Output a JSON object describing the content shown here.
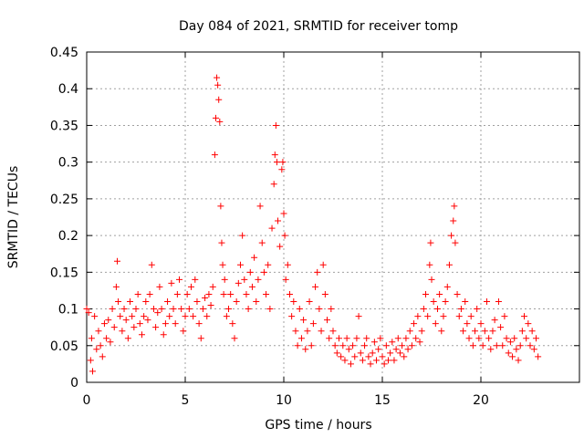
{
  "chart_data": {
    "type": "scatter",
    "title": "Day 084 of 2021, SRMTID for receiver tomp",
    "xlabel": "GPS time / hours",
    "ylabel": "SRMTID / TECUs",
    "xlim": [
      0,
      25
    ],
    "ylim": [
      0,
      0.45
    ],
    "xticks": [
      0,
      5,
      10,
      15,
      20
    ],
    "xtick_labels": [
      "0",
      "5",
      "10",
      "15",
      "20"
    ],
    "yticks": [
      0,
      0.05,
      0.1,
      0.15,
      0.2,
      0.25,
      0.3,
      0.35,
      0.4,
      0.45
    ],
    "ytick_labels": [
      "0",
      "0.05",
      "0.1",
      "0.15",
      "0.2",
      "0.25",
      "0.3",
      "0.35",
      "0.4",
      "0.45"
    ],
    "grid": true,
    "marker": "+",
    "color": "#ff0000",
    "series": [
      {
        "name": "SRMTID",
        "points": [
          [
            0.0,
            0.1
          ],
          [
            0.1,
            0.095
          ],
          [
            0.2,
            0.03
          ],
          [
            0.25,
            0.06
          ],
          [
            0.3,
            0.015
          ],
          [
            0.4,
            0.09
          ],
          [
            0.5,
            0.045
          ],
          [
            0.6,
            0.07
          ],
          [
            0.7,
            0.05
          ],
          [
            0.8,
            0.035
          ],
          [
            0.9,
            0.08
          ],
          [
            1.0,
            0.06
          ],
          [
            1.1,
            0.085
          ],
          [
            1.2,
            0.055
          ],
          [
            1.3,
            0.1
          ],
          [
            1.4,
            0.075
          ],
          [
            1.5,
            0.13
          ],
          [
            1.55,
            0.165
          ],
          [
            1.6,
            0.11
          ],
          [
            1.7,
            0.09
          ],
          [
            1.8,
            0.07
          ],
          [
            1.9,
            0.1
          ],
          [
            2.0,
            0.085
          ],
          [
            2.1,
            0.06
          ],
          [
            2.2,
            0.11
          ],
          [
            2.3,
            0.09
          ],
          [
            2.4,
            0.075
          ],
          [
            2.5,
            0.1
          ],
          [
            2.6,
            0.12
          ],
          [
            2.7,
            0.08
          ],
          [
            2.8,
            0.065
          ],
          [
            2.9,
            0.09
          ],
          [
            3.0,
            0.11
          ],
          [
            3.1,
            0.085
          ],
          [
            3.2,
            0.12
          ],
          [
            3.3,
            0.16
          ],
          [
            3.4,
            0.1
          ],
          [
            3.5,
            0.075
          ],
          [
            3.6,
            0.095
          ],
          [
            3.7,
            0.13
          ],
          [
            3.8,
            0.1
          ],
          [
            3.9,
            0.065
          ],
          [
            4.0,
            0.08
          ],
          [
            4.1,
            0.11
          ],
          [
            4.2,
            0.09
          ],
          [
            4.3,
            0.135
          ],
          [
            4.4,
            0.1
          ],
          [
            4.5,
            0.08
          ],
          [
            4.6,
            0.12
          ],
          [
            4.7,
            0.14
          ],
          [
            4.8,
            0.1
          ],
          [
            4.9,
            0.07
          ],
          [
            5.0,
            0.09
          ],
          [
            5.1,
            0.12
          ],
          [
            5.2,
            0.1
          ],
          [
            5.3,
            0.13
          ],
          [
            5.4,
            0.09
          ],
          [
            5.5,
            0.14
          ],
          [
            5.6,
            0.11
          ],
          [
            5.7,
            0.08
          ],
          [
            5.8,
            0.06
          ],
          [
            5.9,
            0.1
          ],
          [
            6.0,
            0.115
          ],
          [
            6.1,
            0.09
          ],
          [
            6.2,
            0.12
          ],
          [
            6.3,
            0.105
          ],
          [
            6.4,
            0.13
          ],
          [
            6.5,
            0.31
          ],
          [
            6.55,
            0.36
          ],
          [
            6.6,
            0.415
          ],
          [
            6.65,
            0.405
          ],
          [
            6.7,
            0.385
          ],
          [
            6.75,
            0.355
          ],
          [
            6.8,
            0.24
          ],
          [
            6.85,
            0.19
          ],
          [
            6.9,
            0.16
          ],
          [
            6.95,
            0.12
          ],
          [
            7.0,
            0.14
          ],
          [
            7.1,
            0.09
          ],
          [
            7.2,
            0.1
          ],
          [
            7.3,
            0.12
          ],
          [
            7.4,
            0.08
          ],
          [
            7.5,
            0.06
          ],
          [
            7.6,
            0.11
          ],
          [
            7.7,
            0.135
          ],
          [
            7.8,
            0.16
          ],
          [
            7.9,
            0.2
          ],
          [
            8.0,
            0.14
          ],
          [
            8.1,
            0.12
          ],
          [
            8.2,
            0.1
          ],
          [
            8.3,
            0.15
          ],
          [
            8.4,
            0.13
          ],
          [
            8.5,
            0.17
          ],
          [
            8.6,
            0.11
          ],
          [
            8.7,
            0.14
          ],
          [
            8.8,
            0.24
          ],
          [
            8.9,
            0.19
          ],
          [
            9.0,
            0.15
          ],
          [
            9.1,
            0.12
          ],
          [
            9.2,
            0.16
          ],
          [
            9.3,
            0.1
          ],
          [
            9.4,
            0.21
          ],
          [
            9.5,
            0.27
          ],
          [
            9.55,
            0.31
          ],
          [
            9.6,
            0.35
          ],
          [
            9.65,
            0.3
          ],
          [
            9.7,
            0.22
          ],
          [
            9.8,
            0.185
          ],
          [
            9.9,
            0.29
          ],
          [
            9.95,
            0.3
          ],
          [
            10.0,
            0.23
          ],
          [
            10.05,
            0.2
          ],
          [
            10.1,
            0.14
          ],
          [
            10.2,
            0.16
          ],
          [
            10.3,
            0.12
          ],
          [
            10.4,
            0.09
          ],
          [
            10.5,
            0.11
          ],
          [
            10.6,
            0.07
          ],
          [
            10.7,
            0.05
          ],
          [
            10.8,
            0.1
          ],
          [
            10.9,
            0.06
          ],
          [
            11.0,
            0.085
          ],
          [
            11.1,
            0.045
          ],
          [
            11.2,
            0.07
          ],
          [
            11.3,
            0.11
          ],
          [
            11.4,
            0.05
          ],
          [
            11.5,
            0.08
          ],
          [
            11.6,
            0.13
          ],
          [
            11.7,
            0.15
          ],
          [
            11.8,
            0.1
          ],
          [
            11.9,
            0.07
          ],
          [
            12.0,
            0.16
          ],
          [
            12.1,
            0.12
          ],
          [
            12.2,
            0.085
          ],
          [
            12.3,
            0.06
          ],
          [
            12.4,
            0.1
          ],
          [
            12.5,
            0.07
          ],
          [
            12.6,
            0.05
          ],
          [
            12.7,
            0.04
          ],
          [
            12.8,
            0.06
          ],
          [
            12.9,
            0.035
          ],
          [
            13.0,
            0.05
          ],
          [
            13.1,
            0.03
          ],
          [
            13.2,
            0.06
          ],
          [
            13.3,
            0.045
          ],
          [
            13.4,
            0.025
          ],
          [
            13.5,
            0.05
          ],
          [
            13.6,
            0.035
          ],
          [
            13.7,
            0.06
          ],
          [
            13.8,
            0.09
          ],
          [
            13.9,
            0.04
          ],
          [
            14.0,
            0.03
          ],
          [
            14.1,
            0.05
          ],
          [
            14.2,
            0.06
          ],
          [
            14.3,
            0.035
          ],
          [
            14.4,
            0.025
          ],
          [
            14.5,
            0.04
          ],
          [
            14.6,
            0.055
          ],
          [
            14.7,
            0.03
          ],
          [
            14.8,
            0.045
          ],
          [
            14.9,
            0.06
          ],
          [
            15.0,
            0.035
          ],
          [
            15.1,
            0.025
          ],
          [
            15.2,
            0.05
          ],
          [
            15.3,
            0.03
          ],
          [
            15.4,
            0.04
          ],
          [
            15.5,
            0.055
          ],
          [
            15.6,
            0.03
          ],
          [
            15.7,
            0.045
          ],
          [
            15.8,
            0.06
          ],
          [
            15.9,
            0.04
          ],
          [
            16.0,
            0.05
          ],
          [
            16.1,
            0.035
          ],
          [
            16.2,
            0.06
          ],
          [
            16.3,
            0.045
          ],
          [
            16.4,
            0.07
          ],
          [
            16.5,
            0.05
          ],
          [
            16.6,
            0.08
          ],
          [
            16.7,
            0.06
          ],
          [
            16.8,
            0.09
          ],
          [
            16.9,
            0.055
          ],
          [
            17.0,
            0.07
          ],
          [
            17.1,
            0.1
          ],
          [
            17.2,
            0.12
          ],
          [
            17.3,
            0.09
          ],
          [
            17.4,
            0.16
          ],
          [
            17.45,
            0.19
          ],
          [
            17.5,
            0.14
          ],
          [
            17.6,
            0.11
          ],
          [
            17.7,
            0.08
          ],
          [
            17.8,
            0.1
          ],
          [
            17.9,
            0.12
          ],
          [
            18.0,
            0.07
          ],
          [
            18.1,
            0.09
          ],
          [
            18.2,
            0.11
          ],
          [
            18.3,
            0.13
          ],
          [
            18.4,
            0.16
          ],
          [
            18.5,
            0.2
          ],
          [
            18.6,
            0.22
          ],
          [
            18.65,
            0.24
          ],
          [
            18.7,
            0.19
          ],
          [
            18.8,
            0.12
          ],
          [
            18.9,
            0.09
          ],
          [
            19.0,
            0.1
          ],
          [
            19.1,
            0.07
          ],
          [
            19.2,
            0.11
          ],
          [
            19.3,
            0.08
          ],
          [
            19.4,
            0.06
          ],
          [
            19.5,
            0.09
          ],
          [
            19.6,
            0.05
          ],
          [
            19.7,
            0.07
          ],
          [
            19.8,
            0.1
          ],
          [
            19.9,
            0.06
          ],
          [
            20.0,
            0.08
          ],
          [
            20.1,
            0.05
          ],
          [
            20.2,
            0.07
          ],
          [
            20.3,
            0.11
          ],
          [
            20.4,
            0.06
          ],
          [
            20.5,
            0.045
          ],
          [
            20.6,
            0.07
          ],
          [
            20.7,
            0.085
          ],
          [
            20.8,
            0.05
          ],
          [
            20.9,
            0.11
          ],
          [
            21.0,
            0.075
          ],
          [
            21.1,
            0.05
          ],
          [
            21.2,
            0.09
          ],
          [
            21.3,
            0.06
          ],
          [
            21.4,
            0.04
          ],
          [
            21.5,
            0.055
          ],
          [
            21.6,
            0.035
          ],
          [
            21.7,
            0.06
          ],
          [
            21.8,
            0.045
          ],
          [
            21.9,
            0.03
          ],
          [
            22.0,
            0.05
          ],
          [
            22.1,
            0.07
          ],
          [
            22.2,
            0.09
          ],
          [
            22.3,
            0.06
          ],
          [
            22.4,
            0.08
          ],
          [
            22.5,
            0.05
          ],
          [
            22.6,
            0.07
          ],
          [
            22.7,
            0.045
          ],
          [
            22.8,
            0.06
          ],
          [
            22.9,
            0.035
          ]
        ]
      }
    ]
  }
}
